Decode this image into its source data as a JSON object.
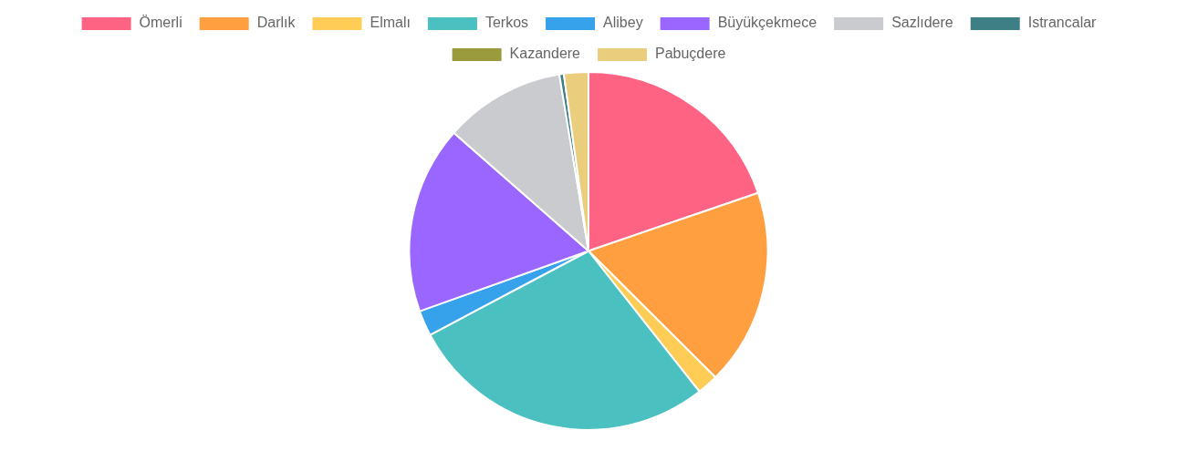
{
  "chart_data": {
    "type": "pie",
    "categories": [
      "Ömerli",
      "Darlık",
      "Elmalı",
      "Terkos",
      "Alibey",
      "Büyükçekmece",
      "Sazlıdere",
      "Istrancalar",
      "Kazandere",
      "Pabuçdere"
    ],
    "values": [
      19.7,
      17.7,
      1.9,
      27.8,
      2.3,
      16.9,
      10.9,
      0.4,
      null,
      2.2
    ],
    "colors": [
      "#ff6384",
      "#ff9f40",
      "#ffcd56",
      "#4bc0c0",
      "#36a2eb",
      "#9966ff",
      "#c9cbcf",
      "#3e7f86",
      "#999b3c",
      "#ebcd7e"
    ],
    "legend": "top"
  }
}
